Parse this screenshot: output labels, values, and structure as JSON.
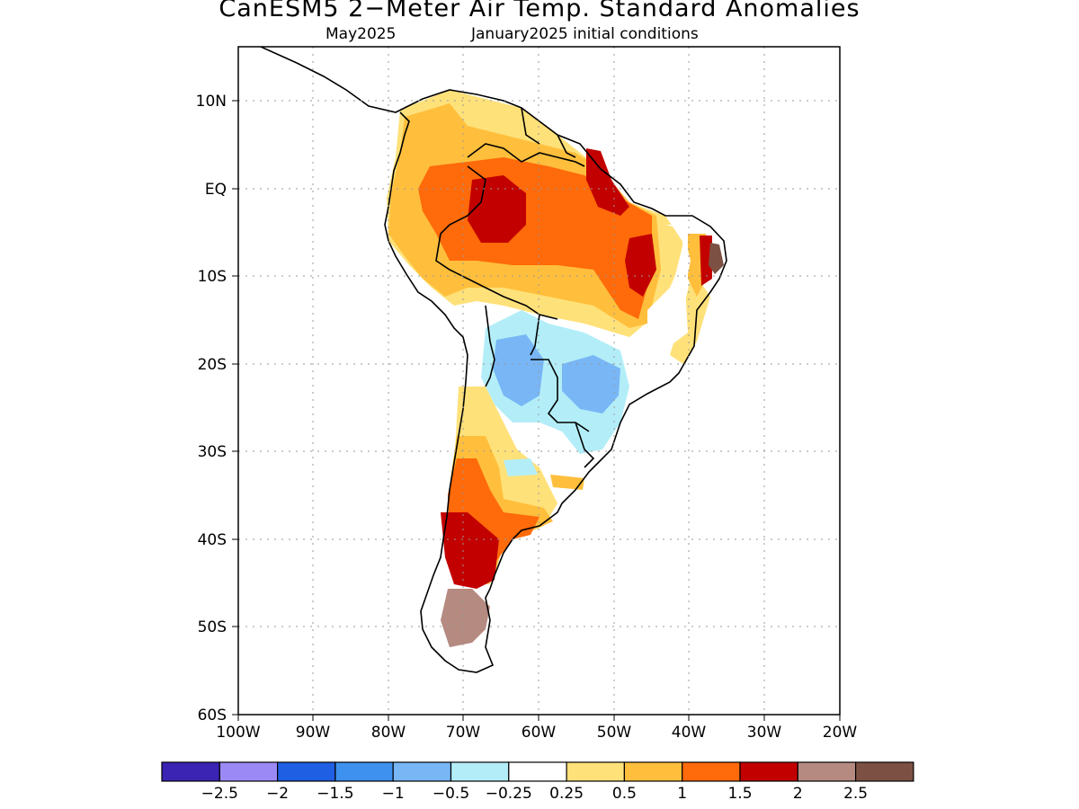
{
  "title": "CanESM5 2−Meter Air Temp. Standard Anomalies",
  "subtitle_left": "May2025",
  "subtitle_right": "January2025 initial conditions",
  "lat_ticks": [
    "10N",
    "EQ",
    "10S",
    "20S",
    "30S",
    "40S",
    "50S",
    "60S"
  ],
  "lon_ticks": [
    "100W",
    "90W",
    "80W",
    "70W",
    "60W",
    "50W",
    "40W",
    "30W",
    "20W"
  ],
  "colorbar": {
    "colors": [
      "#3b23b4",
      "#9b8af5",
      "#1f5fe3",
      "#3e91ef",
      "#78b6f6",
      "#b3eef8",
      "#ffffff",
      "#ffe17a",
      "#ffbf3c",
      "#ff6a0a",
      "#c30000",
      "#b58a80",
      "#7c5144"
    ],
    "labels": [
      "−2.5",
      "−2",
      "−1.5",
      "−1",
      "−0.5",
      "−0.25",
      "0.25",
      "0.5",
      "1",
      "1.5",
      "2",
      "2.5"
    ]
  }
}
